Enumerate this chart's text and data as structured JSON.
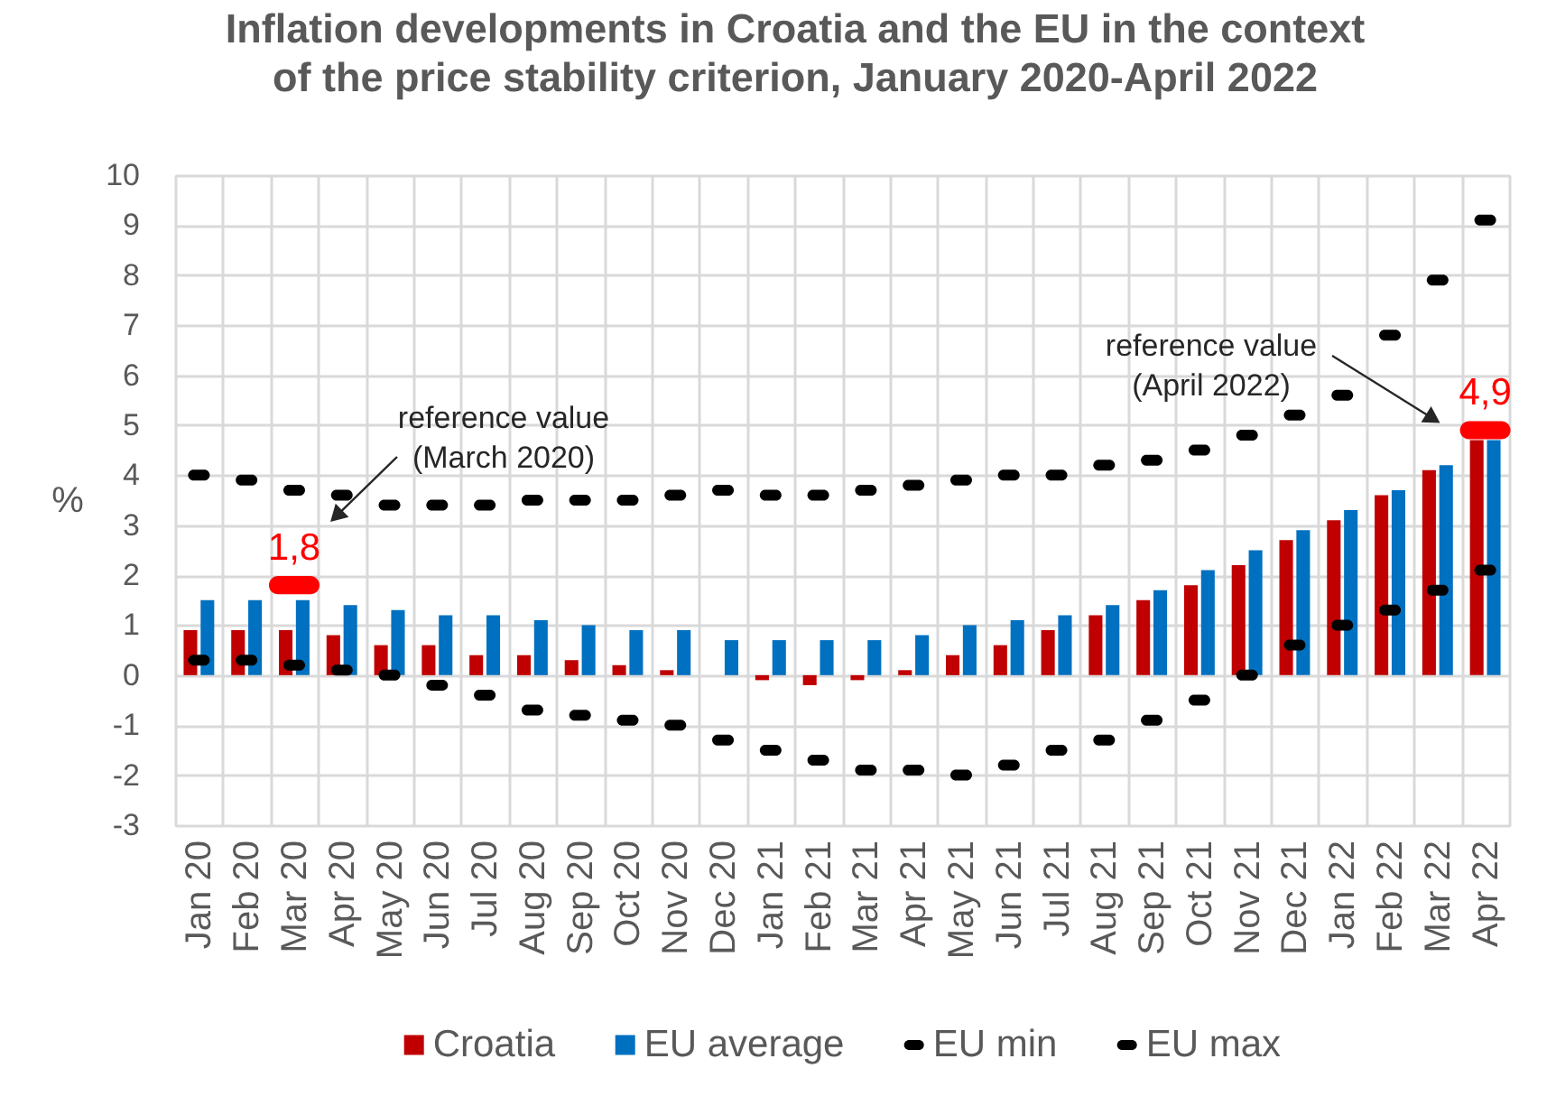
{
  "chart_data": {
    "type": "bar",
    "title": "Inflation developments in Croatia and the EU in the context\nof the price stability criterion, January 2020-April 2022",
    "ylabel": "%",
    "categories": [
      "Jan 20",
      "Feb 20",
      "Mar 20",
      "Apr 20",
      "May 20",
      "Jun 20",
      "Jul 20",
      "Aug 20",
      "Sep 20",
      "Oct 20",
      "Nov 20",
      "Dec 20",
      "Jan 21",
      "Feb 21",
      "Mar 21",
      "Apr 21",
      "May 21",
      "Jun 21",
      "Jul 21",
      "Aug 21",
      "Sep 21",
      "Oct 21",
      "Nov 21",
      "Dec 21",
      "Jan 22",
      "Feb 22",
      "Mar 22",
      "Apr 22"
    ],
    "series": [
      {
        "name": "Croatia",
        "color": "#c00000",
        "values": [
          0.9,
          0.9,
          0.9,
          0.8,
          0.6,
          0.6,
          0.4,
          0.4,
          0.3,
          0.2,
          0.1,
          0.0,
          -0.1,
          -0.2,
          -0.1,
          0.1,
          0.4,
          0.6,
          0.9,
          1.2,
          1.5,
          1.8,
          2.2,
          2.7,
          3.1,
          3.6,
          4.1,
          4.7
        ]
      },
      {
        "name": "EU average",
        "color": "#0070c0",
        "values": [
          1.5,
          1.5,
          1.5,
          1.4,
          1.3,
          1.2,
          1.2,
          1.1,
          1.0,
          0.9,
          0.9,
          0.7,
          0.7,
          0.7,
          0.7,
          0.8,
          1.0,
          1.1,
          1.2,
          1.4,
          1.7,
          2.1,
          2.5,
          2.9,
          3.3,
          3.7,
          4.2,
          4.7
        ]
      },
      {
        "name": "EU min",
        "type": "scatter",
        "color": "#000000",
        "values": [
          0.3,
          0.3,
          0.2,
          0.1,
          0.0,
          -0.2,
          -0.4,
          -0.7,
          -0.8,
          -0.9,
          -1.0,
          -1.3,
          -1.5,
          -1.7,
          -1.9,
          -1.9,
          -2.0,
          -1.8,
          -1.5,
          -1.3,
          -0.9,
          -0.5,
          0.0,
          0.6,
          1.0,
          1.3,
          1.7,
          2.1
        ]
      },
      {
        "name": "EU max",
        "type": "scatter",
        "color": "#000000",
        "values": [
          4.0,
          3.9,
          3.7,
          3.6,
          3.4,
          3.4,
          3.4,
          3.5,
          3.5,
          3.5,
          3.6,
          3.7,
          3.6,
          3.6,
          3.7,
          3.8,
          3.9,
          4.0,
          4.0,
          4.2,
          4.3,
          4.5,
          4.8,
          5.2,
          5.6,
          6.8,
          7.9,
          9.1
        ]
      },
      {
        "type": "scatter",
        "color": "#ff0000",
        "values": [
          null,
          null,
          1.8,
          null,
          null,
          null,
          null,
          null,
          null,
          null,
          null,
          null,
          null,
          null,
          null,
          null,
          null,
          null,
          null,
          null,
          null,
          null,
          null,
          null,
          null,
          null,
          null,
          4.9
        ],
        "value_labels": [
          null,
          null,
          "1,8",
          null,
          null,
          null,
          null,
          null,
          null,
          null,
          null,
          null,
          null,
          null,
          null,
          null,
          null,
          null,
          null,
          null,
          null,
          null,
          null,
          null,
          null,
          null,
          null,
          "4,9"
        ]
      }
    ],
    "ylim": [
      -3,
      10
    ],
    "yticks": [
      -3,
      -2,
      -1,
      0,
      1,
      2,
      3,
      4,
      5,
      6,
      7,
      8,
      9,
      10
    ],
    "grid": true,
    "legend": "bottom",
    "annotations": [
      "reference value\n(March 2020)",
      "reference value\n(April 2022)"
    ]
  }
}
